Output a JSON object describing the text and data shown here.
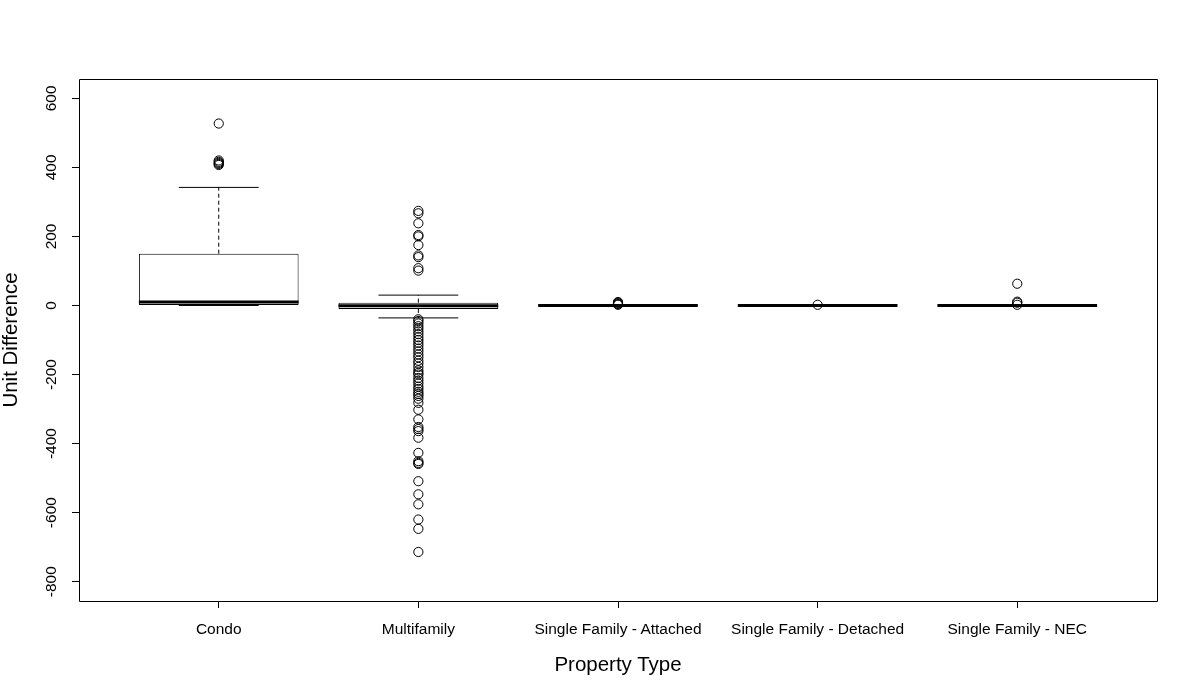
{
  "chart_data": {
    "type": "box",
    "xlabel": "Property Type",
    "ylabel": "Unit Difference",
    "color": "#000000",
    "marker": "circle",
    "categories": [
      "Condo",
      "Multifamily",
      "Single Family - Attached",
      "Single Family - Detached",
      "Single Family - NEC"
    ],
    "boxes": [
      {
        "low": 0,
        "q1": 0,
        "median": 10,
        "q3": 150,
        "high": 342,
        "outliers": [
          527,
          420,
          416,
          413,
          410,
          407
        ]
      },
      {
        "low": -36,
        "q1": -10,
        "median": -1,
        "q3": 8,
        "high": 30,
        "outliers": [
          274,
          267,
          238,
          204,
          200,
          175,
          145,
          140,
          108,
          101,
          -40,
          -45,
          -52,
          -60,
          -67,
          -75,
          -83,
          -92,
          -100,
          -108,
          -116,
          -125,
          -133,
          -142,
          -150,
          -160,
          -168,
          -178,
          -188,
          -195,
          -200,
          -210,
          -218,
          -226,
          -235,
          -242,
          -250,
          -256,
          -262,
          -270,
          -282,
          -302,
          -330,
          -352,
          -358,
          -364,
          -383,
          -427,
          -451,
          -456,
          -459,
          -509,
          -547,
          -576,
          -620,
          -647,
          -714
        ]
      },
      {
        "low": 0,
        "q1": 0,
        "median": 0,
        "q3": 0,
        "high": 0,
        "outliers": [
          2,
          4,
          6,
          8,
          10
        ]
      },
      {
        "low": 0,
        "q1": 0,
        "median": 0,
        "q3": 0,
        "high": 0,
        "outliers": [
          2
        ]
      },
      {
        "low": 0,
        "q1": 0,
        "median": 0,
        "q3": 0,
        "high": 0,
        "outliers": [
          63,
          11,
          8,
          2
        ]
      }
    ],
    "ylim": [
      -856,
      656
    ],
    "yticks": [
      -800,
      -600,
      -400,
      -200,
      0,
      200,
      400,
      600
    ]
  }
}
